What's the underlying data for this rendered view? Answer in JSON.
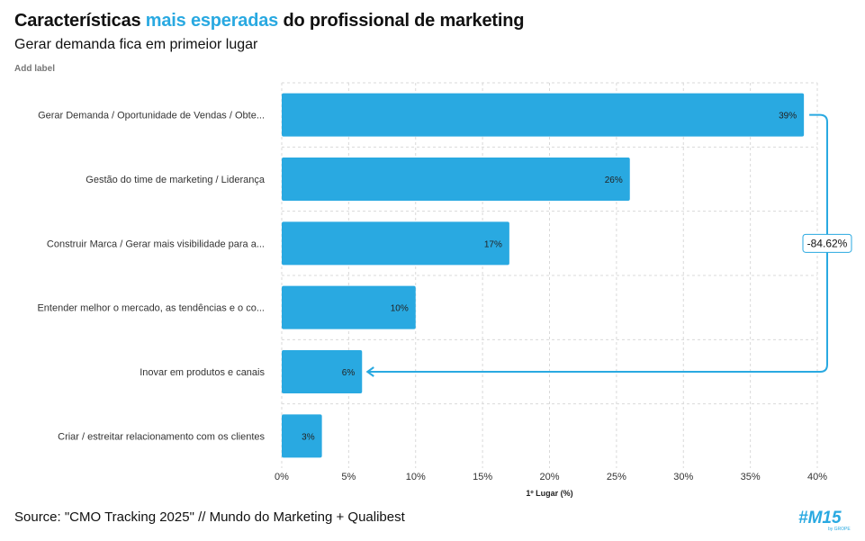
{
  "header": {
    "title_part1": "Características ",
    "title_accent": "mais esperadas",
    "title_part2": " do profissional de marketing",
    "subtitle": "Gerar demanda fica em primeior lugar",
    "add_label": "Add label"
  },
  "footer": {
    "source": "Source: \"CMO Tracking 2025\" // Mundo do Marketing + Qualibest",
    "logo_text": "#M15",
    "logo_subtext": "by GROPE"
  },
  "colors": {
    "bar": "#29a9e1",
    "accent": "#29a9e1",
    "grid": "#d9d9d9"
  },
  "chart_data": {
    "type": "bar",
    "orientation": "horizontal",
    "categories": [
      "Gerar Demanda / Oportunidade de Vendas / Obte...",
      "Gestão do time de marketing / Liderança",
      "Construir Marca / Gerar mais visibilidade para a...",
      "Entender melhor o mercado, as tendências e o co...",
      "Inovar em produtos e canais",
      "Criar / estreitar relacionamento com os clientes"
    ],
    "values": [
      39,
      26,
      17,
      10,
      6,
      3
    ],
    "value_labels": [
      "39%",
      "26%",
      "17%",
      "10%",
      "6%",
      "3%"
    ],
    "xlabel": "1º Lugar (%)",
    "xlim": [
      0,
      40
    ],
    "xticks": [
      "0%",
      "5%",
      "10%",
      "15%",
      "20%",
      "25%",
      "30%",
      "35%",
      "40%"
    ],
    "grid": true,
    "annotation": {
      "text": "-84.62%",
      "from_category_index": 0,
      "to_category_index": 4
    }
  }
}
